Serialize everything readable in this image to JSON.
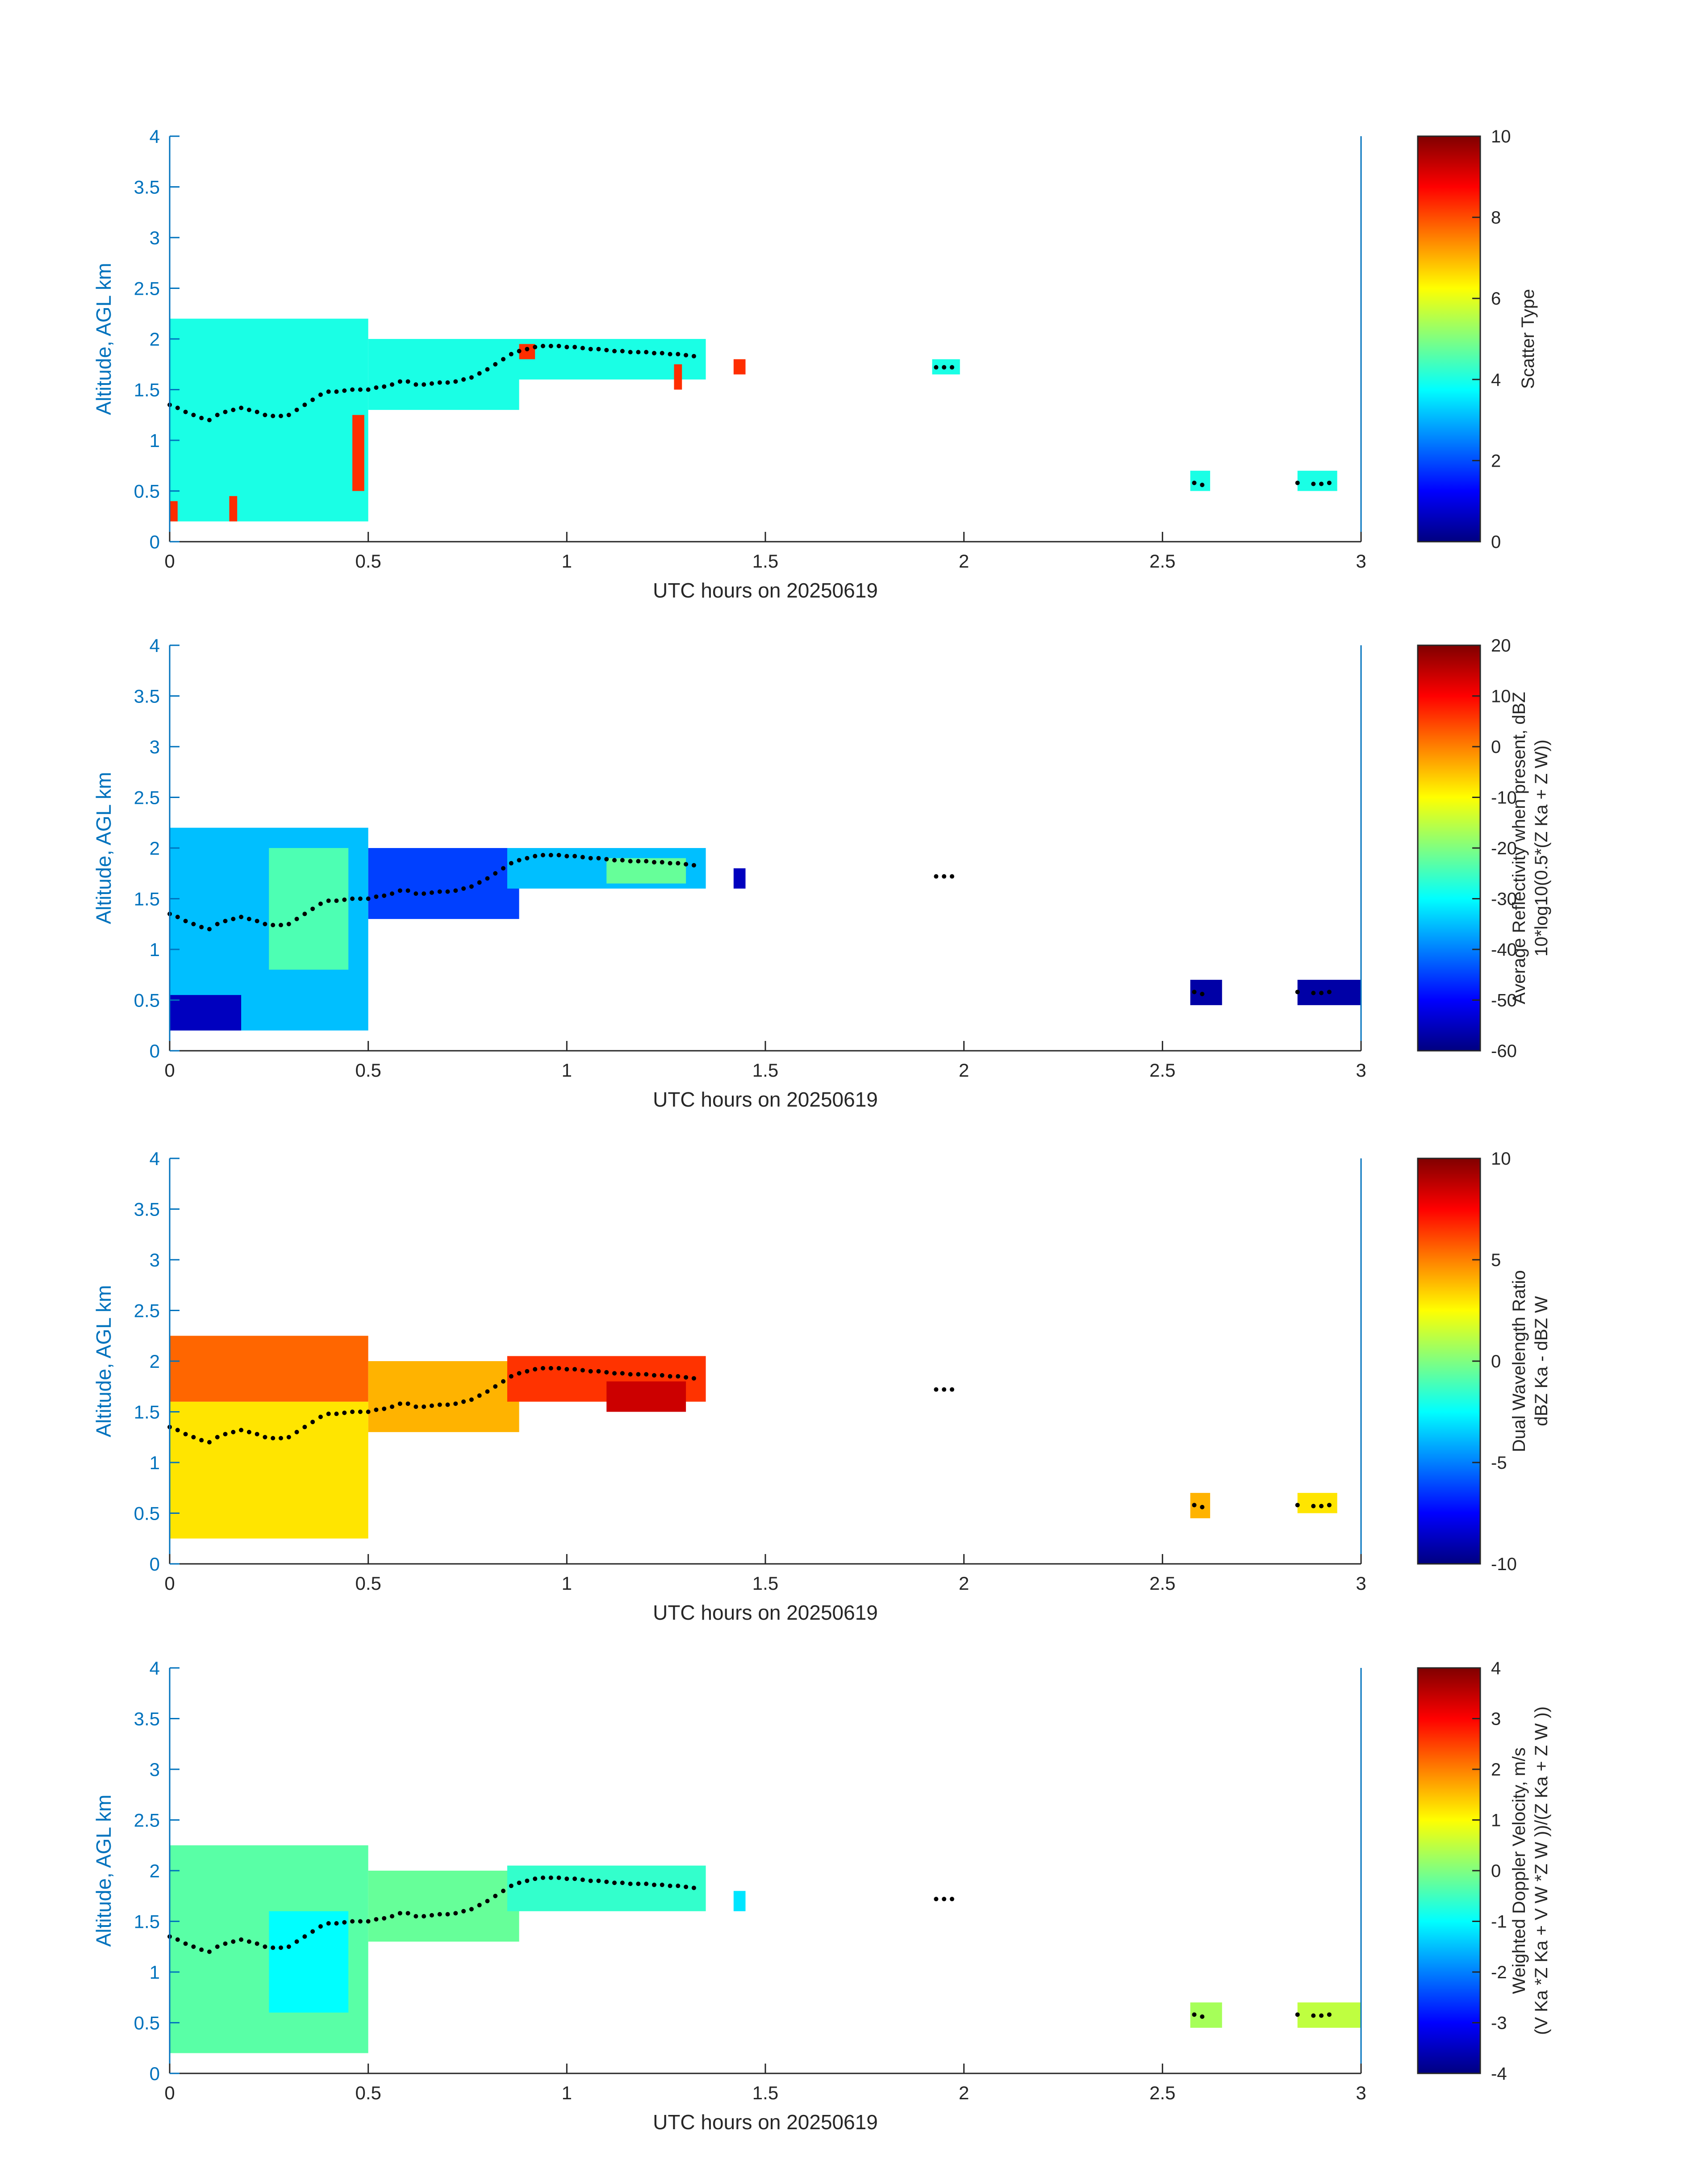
{
  "colors": {
    "axis": "#0072BD",
    "text": "#262626",
    "marker": "#000000"
  },
  "colormap": "jet",
  "chart_data": [
    {
      "type": "heatmap",
      "xlabel": "UTC hours on 20250619",
      "ylabel": "Altitude, AGL km",
      "xlim": [
        0,
        3
      ],
      "ylim": [
        0,
        4
      ],
      "xticks": [
        "0",
        "0.5",
        "1",
        "1.5",
        "2",
        "2.5",
        "3"
      ],
      "yticks": [
        "0",
        "0.5",
        "1",
        "1.5",
        "2",
        "2.5",
        "3",
        "3.5",
        "4"
      ],
      "colorbar": {
        "label_lines": [
          "Scatter Type"
        ],
        "ticks": [
          "0",
          "2",
          "4",
          "6",
          "8",
          "10"
        ],
        "range": [
          0,
          10
        ]
      },
      "regions": [
        {
          "x": [
            0,
            0.5
          ],
          "y": [
            0.2,
            2.2
          ],
          "value": 4
        },
        {
          "x": [
            0.5,
            0.88
          ],
          "y": [
            1.3,
            2.0
          ],
          "value": 4
        },
        {
          "x": [
            0.85,
            1.35
          ],
          "y": [
            1.6,
            2.0
          ],
          "value": 4
        },
        {
          "x": [
            1.92,
            1.99
          ],
          "y": [
            1.65,
            1.8
          ],
          "value": 4
        },
        {
          "x": [
            2.57,
            2.62
          ],
          "y": [
            0.5,
            0.7
          ],
          "value": 4
        },
        {
          "x": [
            2.84,
            2.94
          ],
          "y": [
            0.5,
            0.7
          ],
          "value": 4
        },
        {
          "x": [
            0.46,
            0.49
          ],
          "y": [
            0.5,
            1.25
          ],
          "value": 8.3
        },
        {
          "x": [
            0.0,
            0.02
          ],
          "y": [
            0.2,
            0.4
          ],
          "value": 8.3
        },
        {
          "x": [
            0.15,
            0.17
          ],
          "y": [
            0.2,
            0.45
          ],
          "value": 8.3
        },
        {
          "x": [
            1.42,
            1.45
          ],
          "y": [
            1.65,
            1.8
          ],
          "value": 8.3
        },
        {
          "x": [
            1.27,
            1.29
          ],
          "y": [
            1.5,
            1.75
          ],
          "value": 8.3
        },
        {
          "x": [
            0.88,
            0.92
          ],
          "y": [
            1.8,
            1.95
          ],
          "value": 8.3
        }
      ],
      "marker_x": [
        0.0,
        0.02,
        0.04,
        0.06,
        0.08,
        0.1,
        0.12,
        0.14,
        0.16,
        0.18,
        0.2,
        0.22,
        0.24,
        0.26,
        0.28,
        0.3,
        0.32,
        0.34,
        0.36,
        0.38,
        0.4,
        0.42,
        0.44,
        0.46,
        0.48,
        0.5,
        0.52,
        0.54,
        0.56,
        0.58,
        0.6,
        0.62,
        0.64,
        0.66,
        0.68,
        0.7,
        0.72,
        0.74,
        0.76,
        0.78,
        0.8,
        0.82,
        0.84,
        0.86,
        0.88,
        0.9,
        0.92,
        0.94,
        0.96,
        0.98,
        1.0,
        1.02,
        1.04,
        1.06,
        1.08,
        1.1,
        1.12,
        1.14,
        1.16,
        1.18,
        1.2,
        1.22,
        1.24,
        1.26,
        1.28,
        1.3,
        1.32,
        1.93,
        1.95,
        1.97,
        2.58,
        2.6,
        2.84,
        2.88,
        2.9,
        2.92
      ],
      "marker_y": [
        1.35,
        1.32,
        1.28,
        1.25,
        1.22,
        1.2,
        1.25,
        1.28,
        1.3,
        1.32,
        1.3,
        1.28,
        1.25,
        1.24,
        1.24,
        1.25,
        1.3,
        1.35,
        1.4,
        1.45,
        1.48,
        1.48,
        1.49,
        1.5,
        1.5,
        1.5,
        1.52,
        1.53,
        1.55,
        1.58,
        1.58,
        1.55,
        1.55,
        1.56,
        1.57,
        1.57,
        1.58,
        1.6,
        1.62,
        1.66,
        1.7,
        1.75,
        1.8,
        1.85,
        1.88,
        1.9,
        1.92,
        1.93,
        1.93,
        1.93,
        1.92,
        1.92,
        1.91,
        1.9,
        1.9,
        1.89,
        1.88,
        1.88,
        1.87,
        1.87,
        1.87,
        1.86,
        1.86,
        1.85,
        1.85,
        1.84,
        1.83,
        1.72,
        1.72,
        1.72,
        0.58,
        0.56,
        0.58,
        0.57,
        0.57,
        0.58
      ]
    },
    {
      "type": "heatmap",
      "xlabel": "UTC hours on 20250619",
      "ylabel": "Altitude, AGL km",
      "xlim": [
        0,
        3
      ],
      "ylim": [
        0,
        4
      ],
      "xticks": [
        "0",
        "0.5",
        "1",
        "1.5",
        "2",
        "2.5",
        "3"
      ],
      "yticks": [
        "0",
        "0.5",
        "1",
        "1.5",
        "2",
        "2.5",
        "3",
        "3.5",
        "4"
      ],
      "colorbar": {
        "label_lines": [
          "Average Reflectivity when present, dBZ",
          "10*log10(0.5*(Z Ka + Z W))"
        ],
        "ticks": [
          "-60",
          "-50",
          "-40",
          "-30",
          "-20",
          "-10",
          "0",
          "10",
          "20"
        ],
        "range": [
          -60,
          20
        ]
      },
      "regions": [
        {
          "x": [
            0,
            0.5
          ],
          "y": [
            0.2,
            2.2
          ],
          "value": -35
        },
        {
          "x": [
            0.25,
            0.45
          ],
          "y": [
            0.8,
            2.0
          ],
          "value": -24
        },
        {
          "x": [
            0.5,
            0.88
          ],
          "y": [
            1.3,
            2.0
          ],
          "value": -45
        },
        {
          "x": [
            0.85,
            1.35
          ],
          "y": [
            1.6,
            2.0
          ],
          "value": -35
        },
        {
          "x": [
            1.1,
            1.3
          ],
          "y": [
            1.65,
            1.9
          ],
          "value": -22
        },
        {
          "x": [
            0.0,
            0.18
          ],
          "y": [
            0.2,
            0.55
          ],
          "value": -55
        },
        {
          "x": [
            1.42,
            1.45
          ],
          "y": [
            1.6,
            1.8
          ],
          "value": -55
        },
        {
          "x": [
            2.57,
            2.65
          ],
          "y": [
            0.45,
            0.7
          ],
          "value": -57
        },
        {
          "x": [
            2.84,
            3.0
          ],
          "y": [
            0.45,
            0.7
          ],
          "value": -57
        }
      ],
      "marker_x": [
        0.0,
        0.02,
        0.04,
        0.06,
        0.08,
        0.1,
        0.12,
        0.14,
        0.16,
        0.18,
        0.2,
        0.22,
        0.24,
        0.26,
        0.28,
        0.3,
        0.32,
        0.34,
        0.36,
        0.38,
        0.4,
        0.42,
        0.44,
        0.46,
        0.48,
        0.5,
        0.52,
        0.54,
        0.56,
        0.58,
        0.6,
        0.62,
        0.64,
        0.66,
        0.68,
        0.7,
        0.72,
        0.74,
        0.76,
        0.78,
        0.8,
        0.82,
        0.84,
        0.86,
        0.88,
        0.9,
        0.92,
        0.94,
        0.96,
        0.98,
        1.0,
        1.02,
        1.04,
        1.06,
        1.08,
        1.1,
        1.12,
        1.14,
        1.16,
        1.18,
        1.2,
        1.22,
        1.24,
        1.26,
        1.28,
        1.3,
        1.32,
        1.93,
        1.95,
        1.97,
        2.58,
        2.6,
        2.84,
        2.88,
        2.9,
        2.92
      ],
      "marker_y": [
        1.35,
        1.32,
        1.28,
        1.25,
        1.22,
        1.2,
        1.25,
        1.28,
        1.3,
        1.32,
        1.3,
        1.28,
        1.25,
        1.24,
        1.24,
        1.25,
        1.3,
        1.35,
        1.4,
        1.45,
        1.48,
        1.48,
        1.49,
        1.5,
        1.5,
        1.5,
        1.52,
        1.53,
        1.55,
        1.58,
        1.58,
        1.55,
        1.55,
        1.56,
        1.57,
        1.57,
        1.58,
        1.6,
        1.62,
        1.66,
        1.7,
        1.75,
        1.8,
        1.85,
        1.88,
        1.9,
        1.92,
        1.93,
        1.93,
        1.93,
        1.92,
        1.92,
        1.91,
        1.9,
        1.9,
        1.89,
        1.88,
        1.88,
        1.87,
        1.87,
        1.87,
        1.86,
        1.86,
        1.85,
        1.85,
        1.84,
        1.83,
        1.72,
        1.72,
        1.72,
        0.58,
        0.56,
        0.58,
        0.57,
        0.57,
        0.58
      ]
    },
    {
      "type": "heatmap",
      "xlabel": "UTC hours on 20250619",
      "ylabel": "Altitude, AGL km",
      "xlim": [
        0,
        3
      ],
      "ylim": [
        0,
        4
      ],
      "xticks": [
        "0",
        "0.5",
        "1",
        "1.5",
        "2",
        "2.5",
        "3"
      ],
      "yticks": [
        "0",
        "0.5",
        "1",
        "1.5",
        "2",
        "2.5",
        "3",
        "3.5",
        "4"
      ],
      "colorbar": {
        "label_lines": [
          "Dual Wavelength Ratio",
          "dBZ Ka - dBZ W"
        ],
        "ticks": [
          "-10",
          "-5",
          "0",
          "5",
          "10"
        ],
        "range": [
          -10,
          10
        ]
      },
      "regions": [
        {
          "x": [
            0,
            0.5
          ],
          "y": [
            0.25,
            1.6
          ],
          "value": 3
        },
        {
          "x": [
            0,
            0.5
          ],
          "y": [
            1.6,
            2.25
          ],
          "value": 5.5
        },
        {
          "x": [
            0.5,
            0.88
          ],
          "y": [
            1.3,
            2.0
          ],
          "value": 4
        },
        {
          "x": [
            0.85,
            1.35
          ],
          "y": [
            1.6,
            2.05
          ],
          "value": 6.5
        },
        {
          "x": [
            1.1,
            1.3
          ],
          "y": [
            1.5,
            1.8
          ],
          "value": 8.5
        },
        {
          "x": [
            2.57,
            2.62
          ],
          "y": [
            0.45,
            0.7
          ],
          "value": 4
        },
        {
          "x": [
            2.84,
            2.94
          ],
          "y": [
            0.5,
            0.7
          ],
          "value": 3
        }
      ],
      "marker_x": [
        0.0,
        0.02,
        0.04,
        0.06,
        0.08,
        0.1,
        0.12,
        0.14,
        0.16,
        0.18,
        0.2,
        0.22,
        0.24,
        0.26,
        0.28,
        0.3,
        0.32,
        0.34,
        0.36,
        0.38,
        0.4,
        0.42,
        0.44,
        0.46,
        0.48,
        0.5,
        0.52,
        0.54,
        0.56,
        0.58,
        0.6,
        0.62,
        0.64,
        0.66,
        0.68,
        0.7,
        0.72,
        0.74,
        0.76,
        0.78,
        0.8,
        0.82,
        0.84,
        0.86,
        0.88,
        0.9,
        0.92,
        0.94,
        0.96,
        0.98,
        1.0,
        1.02,
        1.04,
        1.06,
        1.08,
        1.1,
        1.12,
        1.14,
        1.16,
        1.18,
        1.2,
        1.22,
        1.24,
        1.26,
        1.28,
        1.3,
        1.32,
        1.93,
        1.95,
        1.97,
        2.58,
        2.6,
        2.84,
        2.88,
        2.9,
        2.92
      ],
      "marker_y": [
        1.35,
        1.32,
        1.28,
        1.25,
        1.22,
        1.2,
        1.25,
        1.28,
        1.3,
        1.32,
        1.3,
        1.28,
        1.25,
        1.24,
        1.24,
        1.25,
        1.3,
        1.35,
        1.4,
        1.45,
        1.48,
        1.48,
        1.49,
        1.5,
        1.5,
        1.5,
        1.52,
        1.53,
        1.55,
        1.58,
        1.58,
        1.55,
        1.55,
        1.56,
        1.57,
        1.57,
        1.58,
        1.6,
        1.62,
        1.66,
        1.7,
        1.75,
        1.8,
        1.85,
        1.88,
        1.9,
        1.92,
        1.93,
        1.93,
        1.93,
        1.92,
        1.92,
        1.91,
        1.9,
        1.9,
        1.89,
        1.88,
        1.88,
        1.87,
        1.87,
        1.87,
        1.86,
        1.86,
        1.85,
        1.85,
        1.84,
        1.83,
        1.72,
        1.72,
        1.72,
        0.58,
        0.56,
        0.58,
        0.57,
        0.57,
        0.58
      ]
    },
    {
      "type": "heatmap",
      "xlabel": "UTC hours on 20250619",
      "ylabel": "Altitude, AGL km",
      "xlim": [
        0,
        3
      ],
      "ylim": [
        0,
        4
      ],
      "xticks": [
        "0",
        "0.5",
        "1",
        "1.5",
        "2",
        "2.5",
        "3"
      ],
      "yticks": [
        "0",
        "0.5",
        "1",
        "1.5",
        "2",
        "2.5",
        "3",
        "3.5",
        "4"
      ],
      "colorbar": {
        "label_lines": [
          "Weighted Doppler Velocity, m/s",
          "(V Ka *Z Ka + V W *Z W ))/(Z Ka + Z W ))"
        ],
        "ticks": [
          "-4",
          "-3",
          "-2",
          "-1",
          "0",
          "1",
          "2",
          "3",
          "4"
        ],
        "range": [
          -4,
          4
        ]
      },
      "regions": [
        {
          "x": [
            0,
            0.5
          ],
          "y": [
            0.2,
            2.25
          ],
          "value": -0.3
        },
        {
          "x": [
            0.25,
            0.45
          ],
          "y": [
            0.6,
            1.6
          ],
          "value": -1.0
        },
        {
          "x": [
            0.5,
            0.88
          ],
          "y": [
            1.3,
            2.0
          ],
          "value": -0.2
        },
        {
          "x": [
            0.85,
            1.35
          ],
          "y": [
            1.6,
            2.05
          ],
          "value": -0.6
        },
        {
          "x": [
            1.42,
            1.45
          ],
          "y": [
            1.6,
            1.8
          ],
          "value": -1.2
        },
        {
          "x": [
            2.57,
            2.65
          ],
          "y": [
            0.45,
            0.7
          ],
          "value": 0.3
        },
        {
          "x": [
            2.84,
            3.0
          ],
          "y": [
            0.45,
            0.7
          ],
          "value": 0.5
        }
      ],
      "marker_x": [
        0.0,
        0.02,
        0.04,
        0.06,
        0.08,
        0.1,
        0.12,
        0.14,
        0.16,
        0.18,
        0.2,
        0.22,
        0.24,
        0.26,
        0.28,
        0.3,
        0.32,
        0.34,
        0.36,
        0.38,
        0.4,
        0.42,
        0.44,
        0.46,
        0.48,
        0.5,
        0.52,
        0.54,
        0.56,
        0.58,
        0.6,
        0.62,
        0.64,
        0.66,
        0.68,
        0.7,
        0.72,
        0.74,
        0.76,
        0.78,
        0.8,
        0.82,
        0.84,
        0.86,
        0.88,
        0.9,
        0.92,
        0.94,
        0.96,
        0.98,
        1.0,
        1.02,
        1.04,
        1.06,
        1.08,
        1.1,
        1.12,
        1.14,
        1.16,
        1.18,
        1.2,
        1.22,
        1.24,
        1.26,
        1.28,
        1.3,
        1.32,
        1.93,
        1.95,
        1.97,
        2.58,
        2.6,
        2.84,
        2.88,
        2.9,
        2.92
      ],
      "marker_y": [
        1.35,
        1.32,
        1.28,
        1.25,
        1.22,
        1.2,
        1.25,
        1.28,
        1.3,
        1.32,
        1.3,
        1.28,
        1.25,
        1.24,
        1.24,
        1.25,
        1.3,
        1.35,
        1.4,
        1.45,
        1.48,
        1.48,
        1.49,
        1.5,
        1.5,
        1.5,
        1.52,
        1.53,
        1.55,
        1.58,
        1.58,
        1.55,
        1.55,
        1.56,
        1.57,
        1.57,
        1.58,
        1.6,
        1.62,
        1.66,
        1.7,
        1.75,
        1.8,
        1.85,
        1.88,
        1.9,
        1.92,
        1.93,
        1.93,
        1.93,
        1.92,
        1.92,
        1.91,
        1.9,
        1.9,
        1.89,
        1.88,
        1.88,
        1.87,
        1.87,
        1.87,
        1.86,
        1.86,
        1.85,
        1.85,
        1.84,
        1.83,
        1.72,
        1.72,
        1.72,
        0.58,
        0.56,
        0.58,
        0.57,
        0.57,
        0.58
      ]
    }
  ]
}
